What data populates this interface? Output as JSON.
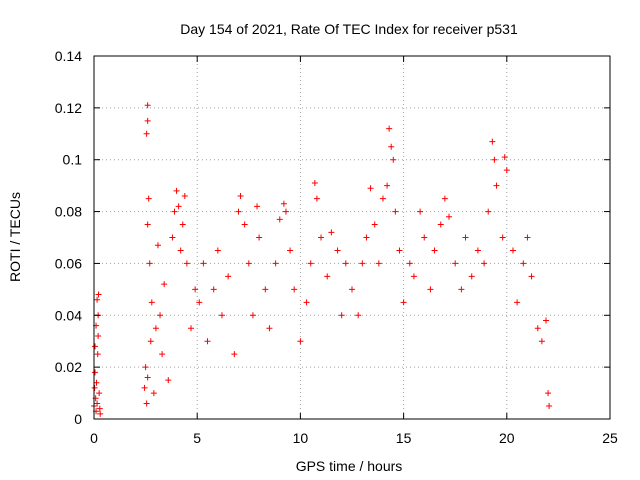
{
  "chart_data": {
    "type": "scatter",
    "title": "Day 154 of 2021, Rate Of TEC Index for receiver p531",
    "xlabel": "GPS time / hours",
    "ylabel": "ROTI / TECUs",
    "xlim": [
      0,
      25
    ],
    "ylim": [
      0,
      0.14
    ],
    "x_ticks": [
      "0",
      "5",
      "10",
      "15",
      "20",
      "25"
    ],
    "y_ticks": [
      "0",
      "0.02",
      "0.04",
      "0.06",
      "0.08",
      "0.1",
      "0.12",
      "0.14"
    ],
    "grid": true,
    "marker": "+",
    "color": "#ff0000",
    "series": [
      {
        "points": [
          [
            0.0,
            0.005
          ],
          [
            0.03,
            0.012
          ],
          [
            0.05,
            0.018
          ],
          [
            0.08,
            0.008
          ],
          [
            0.1,
            0.003
          ],
          [
            0.12,
            0.014
          ],
          [
            0.15,
            0.006
          ],
          [
            0.05,
            0.028
          ],
          [
            0.1,
            0.036
          ],
          [
            0.15,
            0.046
          ],
          [
            0.2,
            0.04
          ],
          [
            0.22,
            0.048
          ],
          [
            0.25,
            0.01
          ],
          [
            0.28,
            0.004
          ],
          [
            0.3,
            0.002
          ],
          [
            0.18,
            0.025
          ],
          [
            0.2,
            0.032
          ],
          [
            2.45,
            0.012
          ],
          [
            2.5,
            0.02
          ],
          [
            2.55,
            0.006
          ],
          [
            2.6,
            0.016
          ],
          [
            2.55,
            0.11
          ],
          [
            2.6,
            0.115
          ],
          [
            2.6,
            0.121
          ],
          [
            2.65,
            0.085
          ],
          [
            2.6,
            0.075
          ],
          [
            2.7,
            0.06
          ],
          [
            2.75,
            0.03
          ],
          [
            2.8,
            0.045
          ],
          [
            2.9,
            0.01
          ],
          [
            3.0,
            0.035
          ],
          [
            3.1,
            0.067
          ],
          [
            3.2,
            0.04
          ],
          [
            3.3,
            0.025
          ],
          [
            3.4,
            0.052
          ],
          [
            3.6,
            0.015
          ],
          [
            3.8,
            0.07
          ],
          [
            3.9,
            0.08
          ],
          [
            4.0,
            0.088
          ],
          [
            4.1,
            0.082
          ],
          [
            4.2,
            0.065
          ],
          [
            4.3,
            0.075
          ],
          [
            4.4,
            0.086
          ],
          [
            4.5,
            0.06
          ],
          [
            4.7,
            0.035
          ],
          [
            4.9,
            0.05
          ],
          [
            5.1,
            0.045
          ],
          [
            5.3,
            0.06
          ],
          [
            5.5,
            0.03
          ],
          [
            5.8,
            0.05
          ],
          [
            6.0,
            0.065
          ],
          [
            6.2,
            0.04
          ],
          [
            6.5,
            0.055
          ],
          [
            6.8,
            0.025
          ],
          [
            7.0,
            0.08
          ],
          [
            7.1,
            0.086
          ],
          [
            7.3,
            0.075
          ],
          [
            7.5,
            0.06
          ],
          [
            7.7,
            0.04
          ],
          [
            7.9,
            0.082
          ],
          [
            8.0,
            0.07
          ],
          [
            8.3,
            0.05
          ],
          [
            8.5,
            0.035
          ],
          [
            8.8,
            0.06
          ],
          [
            9.0,
            0.077
          ],
          [
            9.2,
            0.083
          ],
          [
            9.3,
            0.08
          ],
          [
            9.5,
            0.065
          ],
          [
            9.7,
            0.05
          ],
          [
            10.0,
            0.03
          ],
          [
            10.3,
            0.045
          ],
          [
            10.5,
            0.06
          ],
          [
            10.7,
            0.091
          ],
          [
            10.8,
            0.085
          ],
          [
            11.0,
            0.07
          ],
          [
            11.3,
            0.055
          ],
          [
            11.5,
            0.072
          ],
          [
            11.8,
            0.065
          ],
          [
            12.0,
            0.04
          ],
          [
            12.2,
            0.06
          ],
          [
            12.5,
            0.05
          ],
          [
            12.8,
            0.04
          ],
          [
            13.0,
            0.06
          ],
          [
            13.2,
            0.07
          ],
          [
            13.4,
            0.089
          ],
          [
            13.6,
            0.075
          ],
          [
            13.8,
            0.06
          ],
          [
            14.0,
            0.085
          ],
          [
            14.2,
            0.09
          ],
          [
            14.3,
            0.112
          ],
          [
            14.4,
            0.105
          ],
          [
            14.5,
            0.1
          ],
          [
            14.6,
            0.08
          ],
          [
            14.8,
            0.065
          ],
          [
            15.0,
            0.045
          ],
          [
            15.3,
            0.06
          ],
          [
            15.5,
            0.055
          ],
          [
            15.8,
            0.08
          ],
          [
            16.0,
            0.07
          ],
          [
            16.3,
            0.05
          ],
          [
            16.5,
            0.065
          ],
          [
            16.8,
            0.075
          ],
          [
            17.0,
            0.085
          ],
          [
            17.2,
            0.078
          ],
          [
            17.5,
            0.06
          ],
          [
            17.8,
            0.05
          ],
          [
            18.0,
            0.07
          ],
          [
            18.3,
            0.055
          ],
          [
            18.6,
            0.065
          ],
          [
            18.9,
            0.06
          ],
          [
            19.1,
            0.08
          ],
          [
            19.3,
            0.107
          ],
          [
            19.4,
            0.1
          ],
          [
            19.5,
            0.09
          ],
          [
            19.8,
            0.07
          ],
          [
            19.9,
            0.101
          ],
          [
            20.0,
            0.096
          ],
          [
            20.3,
            0.065
          ],
          [
            20.5,
            0.045
          ],
          [
            20.8,
            0.06
          ],
          [
            21.0,
            0.07
          ],
          [
            21.2,
            0.055
          ],
          [
            21.5,
            0.035
          ],
          [
            21.7,
            0.03
          ],
          [
            21.9,
            0.038
          ],
          [
            22.0,
            0.01
          ],
          [
            22.05,
            0.005
          ]
        ]
      }
    ]
  }
}
